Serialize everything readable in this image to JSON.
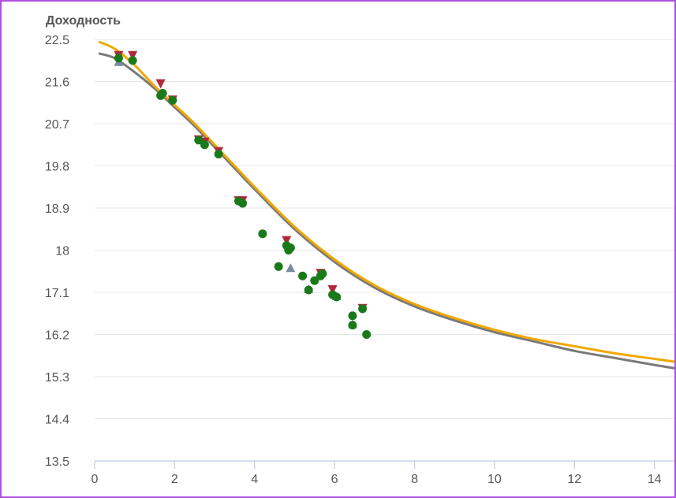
{
  "chart_data": {
    "type": "scatter",
    "title": "",
    "ylabel": "Доходность",
    "xlabel": "",
    "xlim": [
      0,
      14.5
    ],
    "ylim": [
      13.5,
      22.5
    ],
    "x_ticks": [
      0,
      2,
      4,
      6,
      8,
      10,
      12,
      14
    ],
    "y_ticks": [
      "22.5",
      "21.6",
      "20.7",
      "19.8",
      "18.9",
      "18",
      "17.1",
      "16.2",
      "15.3",
      "14.4",
      "13.5"
    ],
    "grid": true,
    "colors": {
      "gray_curve": "#7a7a7a",
      "orange_curve": "#f0a800",
      "green_points": "#1a7a1a",
      "red_markers": "#b0283c",
      "gray_markers": "#7a8aa0",
      "grid": "#e6e6e6",
      "axis": "#c8d4e8"
    },
    "curves": [
      {
        "color_key": "gray_curve",
        "x": [
          0.1,
          0.5,
          1,
          1.5,
          2,
          2.5,
          3,
          3.5,
          4,
          5,
          6,
          7,
          8,
          9,
          10,
          11,
          12,
          13,
          14,
          14.5
        ],
        "y": [
          22.2,
          22.1,
          21.8,
          21.45,
          21.05,
          20.65,
          20.2,
          19.75,
          19.3,
          18.45,
          17.75,
          17.2,
          16.8,
          16.5,
          16.25,
          16.05,
          15.85,
          15.7,
          15.55,
          15.48
        ]
      },
      {
        "color_key": "orange_curve",
        "x": [
          0.1,
          0.5,
          1,
          1.5,
          2,
          2.5,
          3,
          3.5,
          4,
          5,
          6,
          7,
          8,
          9,
          10,
          11,
          12,
          13,
          14,
          14.5
        ],
        "y": [
          22.45,
          22.3,
          21.95,
          21.5,
          21.1,
          20.7,
          20.25,
          19.8,
          19.35,
          18.5,
          17.8,
          17.25,
          16.85,
          16.55,
          16.3,
          16.1,
          15.95,
          15.8,
          15.68,
          15.62
        ]
      }
    ],
    "points_green": [
      [
        0.6,
        22.1
      ],
      [
        0.95,
        22.05
      ],
      [
        1.65,
        21.3
      ],
      [
        1.7,
        21.35
      ],
      [
        1.95,
        21.2
      ],
      [
        2.6,
        20.35
      ],
      [
        2.75,
        20.25
      ],
      [
        3.1,
        20.05
      ],
      [
        3.6,
        19.05
      ],
      [
        3.7,
        19.0
      ],
      [
        4.2,
        18.35
      ],
      [
        4.6,
        17.65
      ],
      [
        4.8,
        18.1
      ],
      [
        4.85,
        18.0
      ],
      [
        4.9,
        18.05
      ],
      [
        5.2,
        17.45
      ],
      [
        5.35,
        17.15
      ],
      [
        5.5,
        17.35
      ],
      [
        5.65,
        17.45
      ],
      [
        5.7,
        17.5
      ],
      [
        5.95,
        17.05
      ],
      [
        6.05,
        17.0
      ],
      [
        6.45,
        16.6
      ],
      [
        6.45,
        16.4
      ],
      [
        6.7,
        16.75
      ],
      [
        6.8,
        16.2
      ]
    ],
    "markers_red": [
      [
        0.6,
        22.15
      ],
      [
        0.95,
        22.15
      ],
      [
        1.65,
        21.55
      ],
      [
        1.95,
        21.2
      ],
      [
        2.6,
        20.35
      ],
      [
        2.75,
        20.3
      ],
      [
        3.1,
        20.1
      ],
      [
        3.6,
        19.05
      ],
      [
        3.7,
        19.05
      ],
      [
        4.8,
        18.2
      ],
      [
        5.65,
        17.5
      ],
      [
        5.95,
        17.15
      ],
      [
        6.7,
        16.75
      ]
    ],
    "markers_gray": [
      [
        0.6,
        22.0
      ],
      [
        4.9,
        17.6
      ],
      [
        5.35,
        17.15
      ],
      [
        6.45,
        16.4
      ],
      [
        6.05,
        17.0
      ]
    ]
  }
}
